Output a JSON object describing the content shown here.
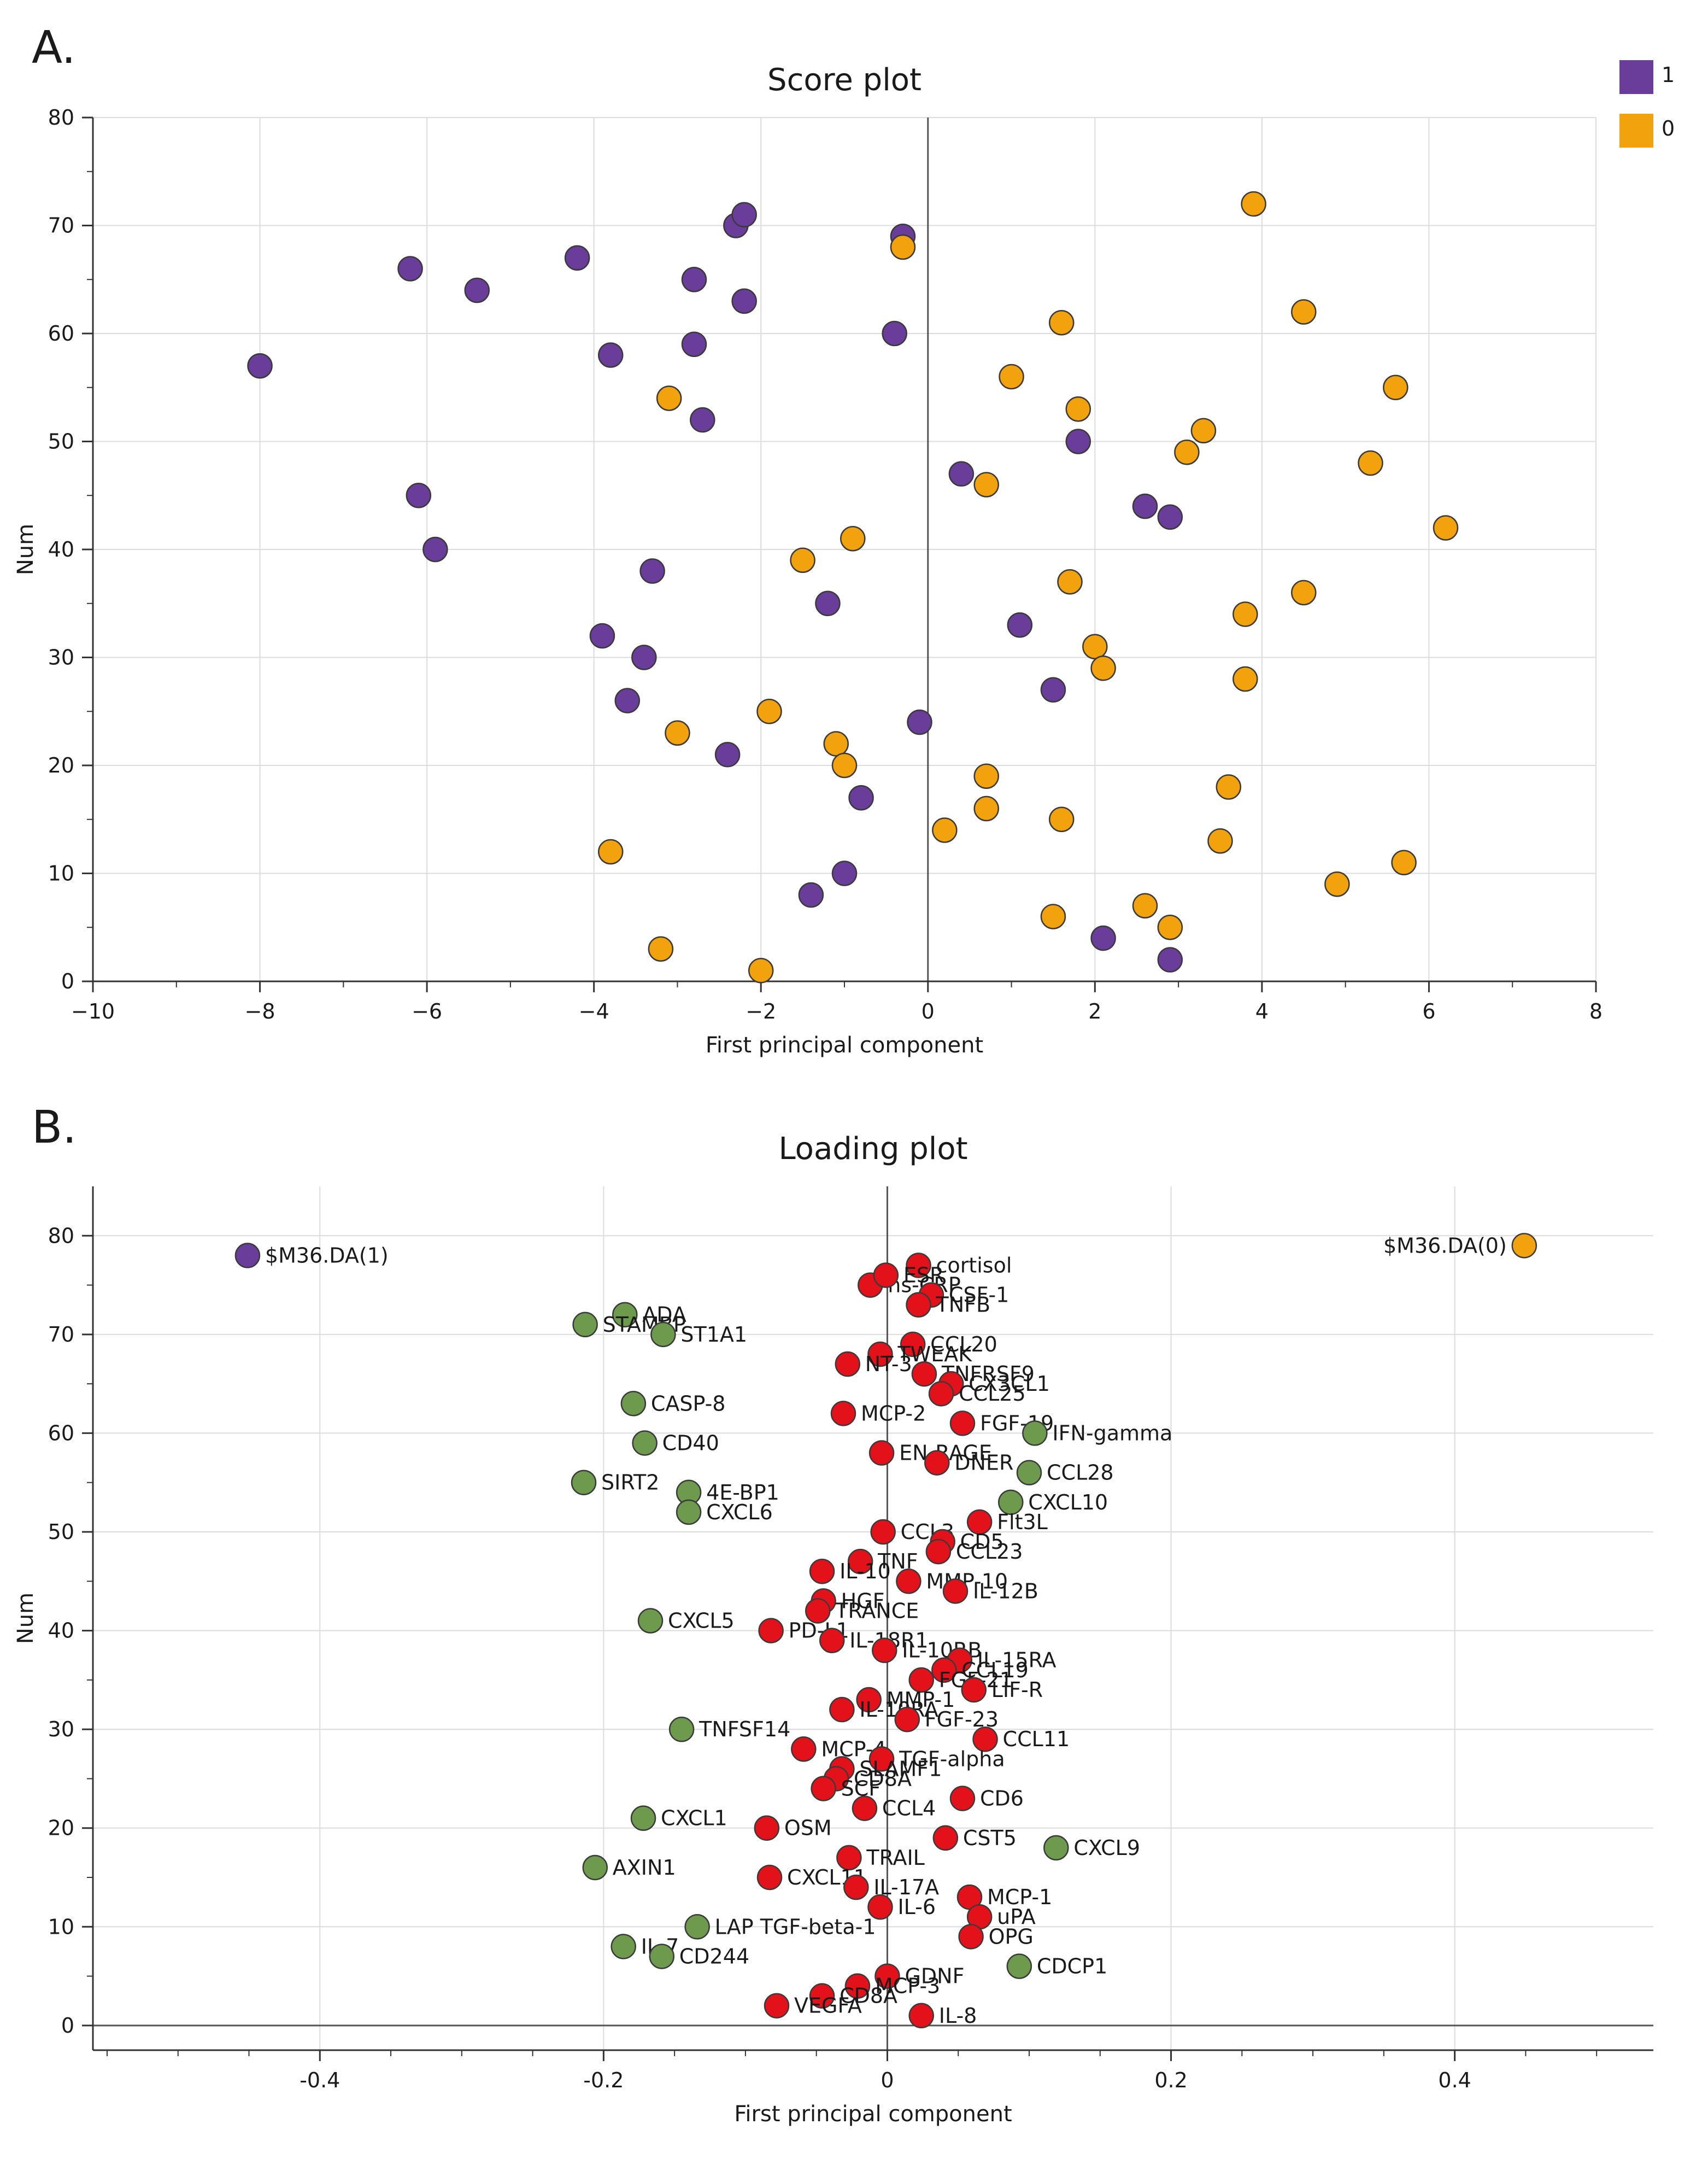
{
  "panels": {
    "a": "A.",
    "b": "B."
  },
  "colors": {
    "group1": "#6a3d9a",
    "group0": "#f2a20c",
    "red": "#e3121a",
    "green": "#6d9a4c"
  },
  "chart_data": [
    {
      "type": "scatter",
      "title": "Score plot",
      "xlabel": "First principal component",
      "ylabel": "Num",
      "xlim": [
        -10,
        8
      ],
      "ylim": [
        0,
        80
      ],
      "xticks": [
        -10,
        -8,
        -6,
        -4,
        -2,
        0,
        2,
        4,
        6,
        8
      ],
      "yticks": [
        0,
        10,
        20,
        30,
        40,
        50,
        60,
        70,
        80
      ],
      "grid": true,
      "legend": [
        {
          "label": "1",
          "color": "#6a3d9a"
        },
        {
          "label": "0",
          "color": "#f2a20c"
        }
      ],
      "series": [
        {
          "name": "1",
          "color": "#6a3d9a",
          "points": [
            [
              -8.0,
              57
            ],
            [
              -6.2,
              66
            ],
            [
              -6.1,
              45
            ],
            [
              -5.9,
              40
            ],
            [
              -5.4,
              64
            ],
            [
              -4.2,
              67
            ],
            [
              -3.8,
              58
            ],
            [
              -3.9,
              32
            ],
            [
              -3.6,
              26
            ],
            [
              -3.4,
              30
            ],
            [
              -3.3,
              38
            ],
            [
              -2.8,
              65
            ],
            [
              -2.8,
              59
            ],
            [
              -2.7,
              52
            ],
            [
              -2.3,
              70
            ],
            [
              -2.2,
              71
            ],
            [
              -2.2,
              63
            ],
            [
              -2.4,
              21
            ],
            [
              -1.4,
              8
            ],
            [
              -1.2,
              35
            ],
            [
              -1.0,
              10
            ],
            [
              -0.8,
              17
            ],
            [
              -0.4,
              60
            ],
            [
              -0.3,
              69
            ],
            [
              -0.1,
              24
            ],
            [
              0.4,
              47
            ],
            [
              1.1,
              33
            ],
            [
              1.5,
              27
            ],
            [
              1.8,
              50
            ],
            [
              2.1,
              4
            ],
            [
              2.6,
              44
            ],
            [
              2.9,
              43
            ],
            [
              2.9,
              2
            ]
          ]
        },
        {
          "name": "0",
          "color": "#f2a20c",
          "points": [
            [
              -3.1,
              54
            ],
            [
              -3.2,
              3
            ],
            [
              -3.0,
              23
            ],
            [
              -3.8,
              12
            ],
            [
              -2.0,
              1
            ],
            [
              -1.9,
              25
            ],
            [
              -1.5,
              39
            ],
            [
              -1.1,
              22
            ],
            [
              -1.0,
              20
            ],
            [
              -0.9,
              41
            ],
            [
              -0.3,
              68
            ],
            [
              0.2,
              14
            ],
            [
              0.7,
              46
            ],
            [
              0.7,
              19
            ],
            [
              0.7,
              16
            ],
            [
              1.0,
              56
            ],
            [
              1.5,
              6
            ],
            [
              1.6,
              61
            ],
            [
              1.6,
              15
            ],
            [
              1.7,
              37
            ],
            [
              1.8,
              53
            ],
            [
              2.0,
              31
            ],
            [
              2.1,
              29
            ],
            [
              2.6,
              7
            ],
            [
              2.9,
              5
            ],
            [
              3.1,
              49
            ],
            [
              3.3,
              51
            ],
            [
              3.5,
              13
            ],
            [
              3.6,
              18
            ],
            [
              3.8,
              28
            ],
            [
              3.8,
              34
            ],
            [
              3.9,
              72
            ],
            [
              4.5,
              62
            ],
            [
              4.5,
              36
            ],
            [
              4.9,
              9
            ],
            [
              5.3,
              48
            ],
            [
              5.6,
              55
            ],
            [
              5.7,
              11
            ],
            [
              6.2,
              42
            ]
          ]
        }
      ]
    },
    {
      "type": "scatter",
      "title": "Loading plot",
      "xlabel": "First principal component",
      "ylabel": "Num",
      "xlim": [
        -0.56,
        0.54
      ],
      "ylim": [
        -2.5,
        85
      ],
      "xticks": [
        -0.4,
        -0.2,
        0,
        0.2,
        0.4
      ],
      "xtick_labels": [
        "-0.4",
        "-0.2",
        "0",
        "0.2",
        "0.4"
      ],
      "yticks": [
        0,
        10,
        20,
        30,
        40,
        50,
        60,
        70,
        80
      ],
      "grid": true,
      "points": [
        {
          "label": "$M36.DA(1)",
          "x": -0.451,
          "y": 78,
          "c": "purple"
        },
        {
          "label": "$M36.DA(0)",
          "x": 0.449,
          "y": 79,
          "c": "orange",
          "anchor": "end"
        },
        {
          "label": "cortisol",
          "x": 0.022,
          "y": 77,
          "c": "red"
        },
        {
          "label": "hs-CRP",
          "x": -0.012,
          "y": 75,
          "c": "red"
        },
        {
          "label": "ESR",
          "x": -0.001,
          "y": 76,
          "c": "red"
        },
        {
          "label": "CSF-1",
          "x": 0.031,
          "y": 74,
          "c": "red"
        },
        {
          "label": "TNFB",
          "x": 0.022,
          "y": 73,
          "c": "red"
        },
        {
          "label": "ADA",
          "x": -0.185,
          "y": 72,
          "c": "green"
        },
        {
          "label": "STAMBP",
          "x": -0.213,
          "y": 71,
          "c": "green"
        },
        {
          "label": "ST1A1",
          "x": -0.158,
          "y": 70,
          "c": "green"
        },
        {
          "label": "CCL20",
          "x": 0.018,
          "y": 69,
          "c": "red"
        },
        {
          "label": "TWEAK",
          "x": -0.005,
          "y": 68,
          "c": "red"
        },
        {
          "label": "NT-3",
          "x": -0.028,
          "y": 67,
          "c": "red"
        },
        {
          "label": "TNFRSF9",
          "x": 0.026,
          "y": 66,
          "c": "red"
        },
        {
          "label": "CX3CL1",
          "x": 0.045,
          "y": 65,
          "c": "red"
        },
        {
          "label": "CCL25",
          "x": 0.038,
          "y": 64,
          "c": "red"
        },
        {
          "label": "CASP-8",
          "x": -0.179,
          "y": 63,
          "c": "green"
        },
        {
          "label": "MCP-2",
          "x": -0.031,
          "y": 62,
          "c": "red"
        },
        {
          "label": "FGF-19",
          "x": 0.053,
          "y": 61,
          "c": "red"
        },
        {
          "label": "IFN-gamma",
          "x": 0.104,
          "y": 60,
          "c": "green"
        },
        {
          "label": "CD40",
          "x": -0.171,
          "y": 59,
          "c": "green"
        },
        {
          "label": "EN-RAGE",
          "x": -0.004,
          "y": 58,
          "c": "red"
        },
        {
          "label": "DNER",
          "x": 0.035,
          "y": 57,
          "c": "red"
        },
        {
          "label": "CCL28",
          "x": 0.1,
          "y": 56,
          "c": "green"
        },
        {
          "label": "SIRT2",
          "x": -0.214,
          "y": 55,
          "c": "green"
        },
        {
          "label": "4E-BP1",
          "x": -0.14,
          "y": 54,
          "c": "green"
        },
        {
          "label": "CXCL10",
          "x": 0.087,
          "y": 53,
          "c": "green"
        },
        {
          "label": "CXCL6",
          "x": -0.14,
          "y": 52,
          "c": "green"
        },
        {
          "label": "Flt3L",
          "x": 0.065,
          "y": 51,
          "c": "red"
        },
        {
          "label": "CCL3",
          "x": -0.003,
          "y": 50,
          "c": "red"
        },
        {
          "label": "CD5",
          "x": 0.039,
          "y": 49,
          "c": "red"
        },
        {
          "label": "CCL23",
          "x": 0.036,
          "y": 48,
          "c": "red"
        },
        {
          "label": "TNF",
          "x": -0.019,
          "y": 47,
          "c": "red"
        },
        {
          "label": "IL-10",
          "x": -0.046,
          "y": 46,
          "c": "red"
        },
        {
          "label": "MMP-10",
          "x": 0.015,
          "y": 45,
          "c": "red"
        },
        {
          "label": "IL-12B",
          "x": 0.048,
          "y": 44,
          "c": "red"
        },
        {
          "label": "HGF",
          "x": -0.045,
          "y": 43,
          "c": "red"
        },
        {
          "label": "TRANCE",
          "x": -0.049,
          "y": 42,
          "c": "red"
        },
        {
          "label": "CXCL5",
          "x": -0.167,
          "y": 41,
          "c": "green"
        },
        {
          "label": "PD-L1",
          "x": -0.082,
          "y": 40,
          "c": "red"
        },
        {
          "label": "IL-18R1",
          "x": -0.039,
          "y": 39,
          "c": "red"
        },
        {
          "label": "IL-10RB",
          "x": -0.002,
          "y": 38,
          "c": "red"
        },
        {
          "label": "IL-15RA",
          "x": 0.051,
          "y": 37,
          "c": "red"
        },
        {
          "label": "CCL19",
          "x": 0.04,
          "y": 36,
          "c": "red"
        },
        {
          "label": "FGF-21",
          "x": 0.024,
          "y": 35,
          "c": "red"
        },
        {
          "label": "LIF-R",
          "x": 0.061,
          "y": 34,
          "c": "red"
        },
        {
          "label": "MMP-1",
          "x": -0.013,
          "y": 33,
          "c": "red"
        },
        {
          "label": "IL-10RA",
          "x": -0.032,
          "y": 32,
          "c": "red"
        },
        {
          "label": "FGF-23",
          "x": 0.014,
          "y": 31,
          "c": "red"
        },
        {
          "label": "TNFSF14",
          "x": -0.145,
          "y": 30,
          "c": "green"
        },
        {
          "label": "CCL11",
          "x": 0.069,
          "y": 29,
          "c": "red"
        },
        {
          "label": "MCP-4",
          "x": -0.059,
          "y": 28,
          "c": "red"
        },
        {
          "label": "TGF-alpha",
          "x": -0.004,
          "y": 27,
          "c": "red"
        },
        {
          "label": "SLAMF1",
          "x": -0.032,
          "y": 26,
          "c": "red"
        },
        {
          "label": "CD8A",
          "x": -0.036,
          "y": 25,
          "c": "red"
        },
        {
          "label": "SCF",
          "x": -0.045,
          "y": 24,
          "c": "red"
        },
        {
          "label": "CD6",
          "x": 0.053,
          "y": 23,
          "c": "red"
        },
        {
          "label": "CCL4",
          "x": -0.016,
          "y": 22,
          "c": "red"
        },
        {
          "label": "CXCL1",
          "x": -0.172,
          "y": 21,
          "c": "green"
        },
        {
          "label": "OSM",
          "x": -0.085,
          "y": 20,
          "c": "red"
        },
        {
          "label": "CST5",
          "x": 0.041,
          "y": 19,
          "c": "red"
        },
        {
          "label": "CXCL9",
          "x": 0.119,
          "y": 18,
          "c": "green"
        },
        {
          "label": "TRAIL",
          "x": -0.027,
          "y": 17,
          "c": "red"
        },
        {
          "label": "AXIN1",
          "x": -0.206,
          "y": 16,
          "c": "green"
        },
        {
          "label": "CXCL11",
          "x": -0.083,
          "y": 15,
          "c": "red"
        },
        {
          "label": "IL-17A",
          "x": -0.022,
          "y": 14,
          "c": "red"
        },
        {
          "label": "MCP-1",
          "x": 0.058,
          "y": 13,
          "c": "red"
        },
        {
          "label": "IL-6",
          "x": -0.005,
          "y": 12,
          "c": "red"
        },
        {
          "label": "uPA",
          "x": 0.065,
          "y": 11,
          "c": "red"
        },
        {
          "label": "LAP TGF-beta-1",
          "x": -0.134,
          "y": 10,
          "c": "green"
        },
        {
          "label": "OPG",
          "x": 0.059,
          "y": 9,
          "c": "red"
        },
        {
          "label": "IL-7",
          "x": -0.186,
          "y": 8,
          "c": "green"
        },
        {
          "label": "CD244",
          "x": -0.159,
          "y": 7,
          "c": "green"
        },
        {
          "label": "CDCP1",
          "x": 0.093,
          "y": 6,
          "c": "green"
        },
        {
          "label": "GDNF",
          "x": 0.0,
          "y": 5,
          "c": "red"
        },
        {
          "label": "MCP-3",
          "x": -0.021,
          "y": 4,
          "c": "red"
        },
        {
          "label": "CD8A",
          "x": -0.046,
          "y": 3,
          "c": "red"
        },
        {
          "label": "VEGFA",
          "x": -0.078,
          "y": 2,
          "c": "red"
        },
        {
          "label": "IL-8",
          "x": 0.024,
          "y": 1,
          "c": "red"
        }
      ]
    }
  ]
}
